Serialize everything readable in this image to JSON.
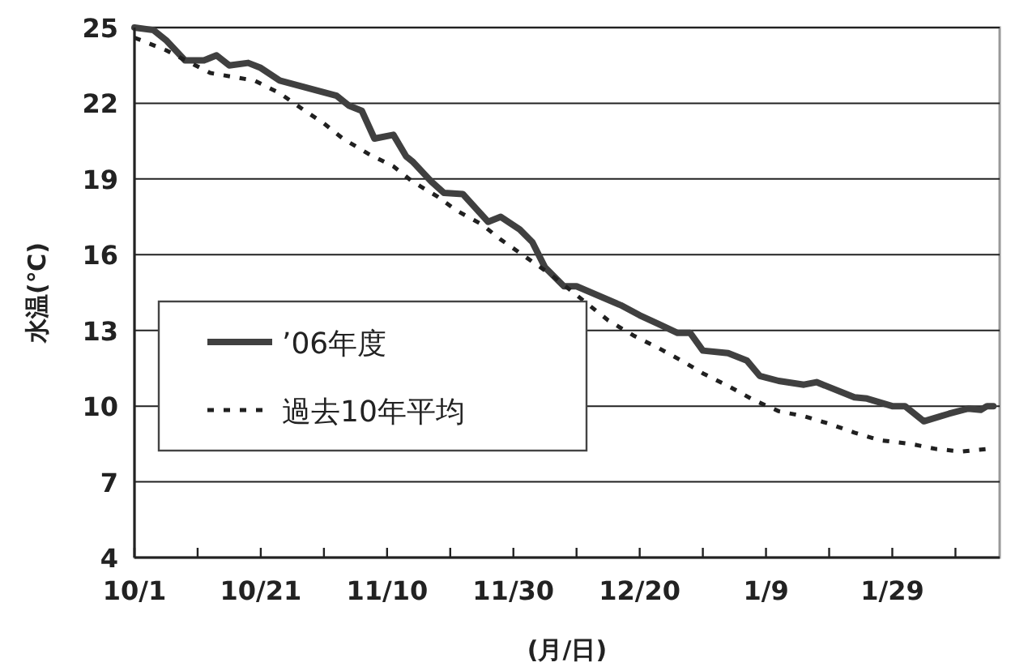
{
  "chart_data": {
    "type": "line",
    "ylabel": "水温(℃)",
    "xlabel": "(月/日)",
    "xlim": [
      "2006-10-01",
      "2007-02-15"
    ],
    "xticks": [
      {
        "value": "2006-10-01",
        "label": "10/1"
      },
      {
        "value": "2006-10-11",
        "label": null
      },
      {
        "value": "2006-10-21",
        "label": "10/21"
      },
      {
        "value": "2006-10-31",
        "label": null
      },
      {
        "value": "2006-11-10",
        "label": "11/10"
      },
      {
        "value": "2006-11-20",
        "label": null
      },
      {
        "value": "2006-11-30",
        "label": "11/30"
      },
      {
        "value": "2006-12-10",
        "label": null
      },
      {
        "value": "2006-12-20",
        "label": "12/20"
      },
      {
        "value": "2006-12-30",
        "label": null
      },
      {
        "value": "2007-01-09",
        "label": "1/9"
      },
      {
        "value": "2007-01-19",
        "label": null
      },
      {
        "value": "2007-01-29",
        "label": "1/29"
      },
      {
        "value": "2007-02-08",
        "label": null
      }
    ],
    "ylim": [
      4,
      25
    ],
    "yticks": [
      4,
      7,
      10,
      13,
      16,
      19,
      22,
      25
    ],
    "grid": "y",
    "legend": "left",
    "marker": "none",
    "series": [
      {
        "name": "’06年度",
        "color": "#404040",
        "line_style": "solid",
        "x": [
          "2006-10-01",
          "2006-10-04",
          "2006-10-06",
          "2006-10-09",
          "2006-10-12",
          "2006-10-14",
          "2006-10-16",
          "2006-10-19",
          "2006-10-21",
          "2006-10-24",
          "2006-10-27",
          "2006-10-30",
          "2006-11-02",
          "2006-11-04",
          "2006-11-06",
          "2006-11-08",
          "2006-11-11",
          "2006-11-13",
          "2006-11-14",
          "2006-11-17",
          "2006-11-19",
          "2006-11-22",
          "2006-11-26",
          "2006-11-28",
          "2006-12-01",
          "2006-12-03",
          "2006-12-05",
          "2006-12-08",
          "2006-12-10",
          "2006-12-17",
          "2006-12-20",
          "2006-12-23",
          "2006-12-26",
          "2006-12-28",
          "2006-12-30",
          "2007-01-03",
          "2007-01-06",
          "2007-01-08",
          "2007-01-11",
          "2007-01-15",
          "2007-01-17",
          "2007-01-23",
          "2007-01-25",
          "2007-01-29",
          "2007-01-31",
          "2007-02-03",
          "2007-02-07",
          "2007-02-10",
          "2007-02-12",
          "2007-02-13",
          "2007-02-14"
        ],
        "values": [
          25,
          24.9,
          24.5,
          23.7,
          23.7,
          23.9,
          23.5,
          23.6,
          23.4,
          22.9,
          22.7,
          22.5,
          22.3,
          21.9,
          21.7,
          20.6,
          20.75,
          19.9,
          19.7,
          18.9,
          18.45,
          18.4,
          17.3,
          17.5,
          17,
          16.5,
          15.5,
          14.75,
          14.75,
          14,
          13.6,
          13.25,
          12.9,
          12.9,
          12.2,
          12.1,
          11.8,
          11.2,
          11,
          10.85,
          10.95,
          10.35,
          10.3,
          10,
          10,
          9.4,
          9.7,
          9.9,
          9.85,
          10,
          10
        ]
      },
      {
        "name": "過去10年平均",
        "color": "#202020",
        "line_style": "dotted",
        "x": [
          "2006-10-01",
          "2006-10-06",
          "2006-10-13",
          "2006-10-20",
          "2006-10-24",
          "2006-10-28",
          "2006-10-31",
          "2006-11-03",
          "2006-11-07",
          "2006-11-11",
          "2006-11-14",
          "2006-11-18",
          "2006-11-21",
          "2006-11-25",
          "2006-11-28",
          "2006-12-02",
          "2006-12-06",
          "2006-12-12",
          "2006-12-15",
          "2006-12-19",
          "2006-12-23",
          "2006-12-27",
          "2006-12-30",
          "2007-01-03",
          "2007-01-07",
          "2007-01-11",
          "2007-01-15",
          "2007-01-19",
          "2007-01-23",
          "2007-01-27",
          "2007-02-01",
          "2007-02-05",
          "2007-02-09",
          "2007-02-13"
        ],
        "values": [
          24.6,
          24.1,
          23.2,
          22.9,
          22.4,
          21.7,
          21.2,
          20.6,
          20,
          19.5,
          18.9,
          18.3,
          17.75,
          17.2,
          16.6,
          15.9,
          15.2,
          14,
          13.4,
          12.8,
          12.3,
          11.75,
          11.3,
          10.8,
          10.25,
          9.8,
          9.6,
          9.3,
          8.95,
          8.65,
          8.5,
          8.3,
          8.2,
          8.3
        ]
      }
    ]
  }
}
